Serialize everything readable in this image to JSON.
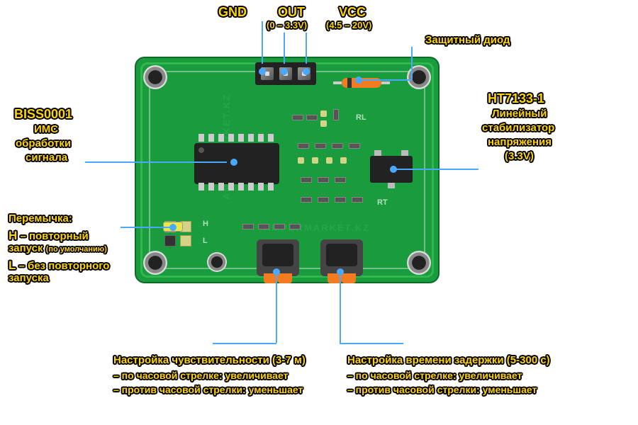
{
  "colors": {
    "pcb": "#1a9c3e",
    "pcb_border": "#0d6b28",
    "label": "#ffd400",
    "leader": "#4aa8ff",
    "diode": "#f47b20",
    "jumper": "#e8e84a"
  },
  "pins": {
    "gnd": {
      "title": "GND"
    },
    "out": {
      "title": "OUT",
      "range": "(0 – 3.3V)"
    },
    "vcc": {
      "title": "VCC",
      "range": "(4.5 – 20V)"
    }
  },
  "diode": {
    "title": "Защитный диод"
  },
  "ic": {
    "title": "BISS0001",
    "line1": "ИМС",
    "line2": "обработки",
    "line3": "сигнала"
  },
  "regulator": {
    "title": "HT7133-1",
    "line1": "Линейный",
    "line2": "стабилизатор",
    "line3": "напряжения",
    "line4": "(3.3V)"
  },
  "jumper": {
    "title": "Перемычка:",
    "h_key": "H",
    "h_text": " – повторный",
    "h_text2": "запуск",
    "h_note": "(по умолчанию)",
    "l_key": "L",
    "l_text": " – без повторного",
    "l_text2": "запуска"
  },
  "pot_sens": {
    "title": "Настройка чувствительности (3-7 м)",
    "cw": "– по часовой стрелке: увеличивает",
    "ccw": "– против часовой стрелки: уменьшает"
  },
  "pot_delay": {
    "title": "Настройка времени задержки (5-300 с)",
    "cw": "– по часовой стрелке: увеличивает",
    "ccw": "– против часовой стрелки: уменьшает"
  },
  "pcb_silk": {
    "rl": "RL",
    "rt": "RT",
    "h": "H",
    "l": "L"
  },
  "watermark": "AMPERMARKET.KZ"
}
